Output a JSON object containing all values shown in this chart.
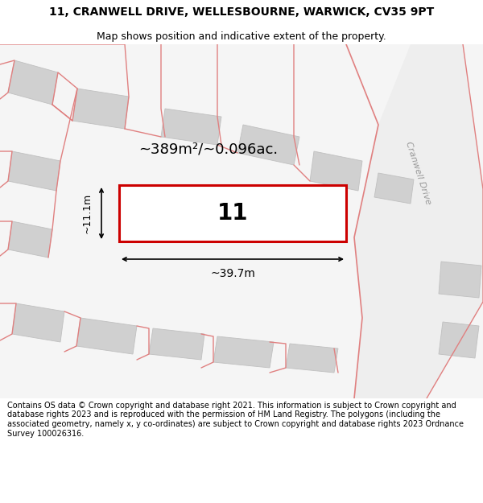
{
  "title": "11, CRANWELL DRIVE, WELLESBOURNE, WARWICK, CV35 9PT",
  "subtitle": "Map shows position and indicative extent of the property.",
  "footer": "Contains OS data © Crown copyright and database right 2021. This information is subject to Crown copyright and database rights 2023 and is reproduced with the permission of HM Land Registry. The polygons (including the associated geometry, namely x, y co-ordinates) are subject to Crown copyright and database rights 2023 Ordnance Survey 100026316.",
  "area_text": "~389m²/~0.096ac.",
  "width_text": "~39.7m",
  "height_text": "~11.1m",
  "plot_number": "11",
  "map_bg": "#f5f5f5",
  "plot_fill": "#ffffff",
  "plot_border": "#cc0000",
  "bld_color": "#d0d0d0",
  "bld_edge": "#c0c0c0",
  "road_line": "#e08080",
  "background_color": "#ffffff",
  "title_fontsize": 10,
  "subtitle_fontsize": 9,
  "footer_fontsize": 7
}
